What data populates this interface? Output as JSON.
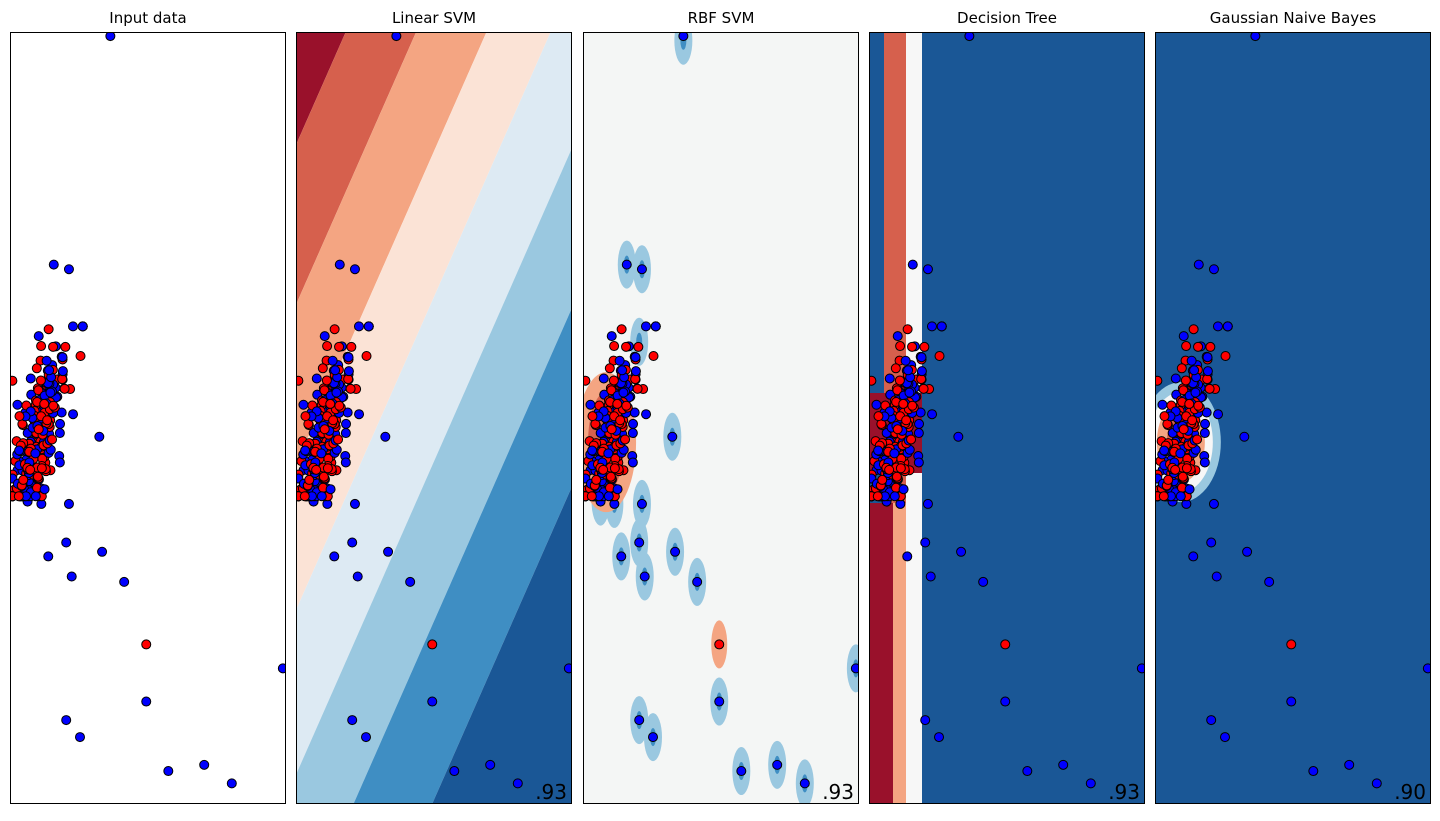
{
  "colors": {
    "class0_point": "#ff0000",
    "class1_point": "#0000ff",
    "edge": "#000000",
    "red_dark": "#99112b",
    "red": "#d6604d",
    "red_light": "#f4a582",
    "red_pale": "#fbe3d6",
    "neutral": "#f4f6f5",
    "blue_pale": "#ddeaf3",
    "blue_light": "#9ac8e0",
    "blue": "#3f8ec3",
    "blue_dark": "#1a5796"
  },
  "chart_data": [
    {
      "type": "scatter",
      "title": "Input data",
      "score": "",
      "background": "none"
    },
    {
      "type": "scatter",
      "title": "Linear SVM",
      "score": ".93",
      "background": "linear"
    },
    {
      "type": "scatter",
      "title": "RBF SVM",
      "score": ".93",
      "background": "rbf"
    },
    {
      "type": "scatter",
      "title": "Decision Tree",
      "score": ".93",
      "background": "tree"
    },
    {
      "type": "scatter",
      "title": "Gaussian Naive Bayes",
      "score": ".90",
      "background": "nb"
    }
  ],
  "points": {
    "note": "data coordinates: x in [0,1] left-to-right, y in [0,1] top-to-bottom",
    "outliers_class1": [
      [
        0.36,
        0.004
      ],
      [
        0.155,
        0.3
      ],
      [
        0.21,
        0.306
      ],
      [
        0.32,
        0.523
      ],
      [
        0.11,
        0.61
      ],
      [
        0.21,
        0.61
      ],
      [
        0.06,
        0.607
      ],
      [
        0.11,
        0.59
      ],
      [
        0.2,
        0.66
      ],
      [
        0.33,
        0.672
      ],
      [
        0.135,
        0.678
      ],
      [
        0.22,
        0.704
      ],
      [
        0.41,
        0.711
      ],
      [
        0.985,
        0.823
      ],
      [
        0.49,
        0.866
      ],
      [
        0.2,
        0.89
      ],
      [
        0.57,
        0.956
      ],
      [
        0.8,
        0.972
      ],
      [
        0.25,
        0.912
      ],
      [
        0.7,
        0.948
      ]
    ],
    "outliers_class0": [
      [
        0.49,
        0.792
      ]
    ]
  }
}
